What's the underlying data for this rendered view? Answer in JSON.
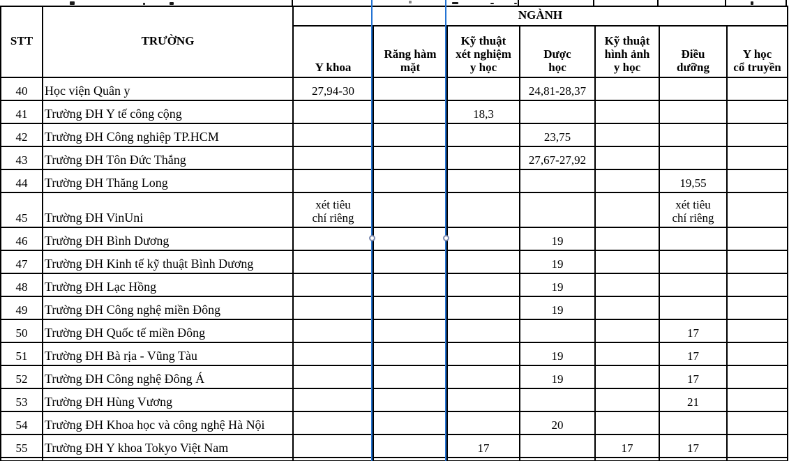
{
  "table": {
    "header": {
      "stt": "STT",
      "truong": "TRƯỜNG",
      "nganh": "NGÀNH",
      "majors": [
        "Y khoa",
        "Răng hàm\nmặt",
        "Kỹ thuật\nxét nghiệm\ny học",
        "Dược\nhọc",
        "Kỹ thuật\nhình ảnh\ny học",
        "Điều\ndưỡng",
        "Y học\ncổ truyền"
      ]
    },
    "rows": [
      {
        "stt": "40",
        "truong": "Học viện Quân y",
        "scores": [
          "27,94-30",
          "",
          "",
          "24,81-28,37",
          "",
          "",
          ""
        ]
      },
      {
        "stt": "41",
        "truong": "Trường ĐH Y tế công cộng",
        "scores": [
          "",
          "",
          "18,3",
          "",
          "",
          "",
          ""
        ]
      },
      {
        "stt": "42",
        "truong": "Trường ĐH Công nghiệp TP.HCM",
        "scores": [
          "",
          "",
          "",
          "23,75",
          "",
          "",
          ""
        ]
      },
      {
        "stt": "43",
        "truong": "Trường ĐH Tôn Đức Thắng",
        "scores": [
          "",
          "",
          "",
          "27,67-27,92",
          "",
          "",
          ""
        ]
      },
      {
        "stt": "44",
        "truong": "Trường ĐH Thăng Long",
        "scores": [
          "",
          "",
          "",
          "",
          "",
          "19,55",
          ""
        ]
      },
      {
        "stt": "45",
        "truong": "Trường ĐH VinUni",
        "scores": [
          "xét tiêu\nchí riêng",
          "",
          "",
          "",
          "",
          "xét tiêu\nchí riêng",
          ""
        ]
      },
      {
        "stt": "46",
        "truong": "Trường ĐH Bình Dương",
        "scores": [
          "",
          "",
          "",
          "19",
          "",
          "",
          ""
        ]
      },
      {
        "stt": "47",
        "truong": "Trường ĐH Kinh tế kỹ thuật Bình Dương",
        "scores": [
          "",
          "",
          "",
          "19",
          "",
          "",
          ""
        ]
      },
      {
        "stt": "48",
        "truong": "Trường ĐH Lạc Hồng",
        "scores": [
          "",
          "",
          "",
          "19",
          "",
          "",
          ""
        ]
      },
      {
        "stt": "49",
        "truong": "Trường ĐH Công nghệ miền Đông",
        "scores": [
          "",
          "",
          "",
          "19",
          "",
          "",
          ""
        ]
      },
      {
        "stt": "50",
        "truong": "Trường ĐH Quốc tế miền Đông",
        "scores": [
          "",
          "",
          "",
          "",
          "",
          "17",
          ""
        ]
      },
      {
        "stt": "51",
        "truong": "Trường ĐH Bà rịa - Vũng Tàu",
        "scores": [
          "",
          "",
          "",
          "19",
          "",
          "17",
          ""
        ]
      },
      {
        "stt": "52",
        "truong": "Trường ĐH Công nghệ Đông Á",
        "scores": [
          "",
          "",
          "",
          "19",
          "",
          "17",
          ""
        ]
      },
      {
        "stt": "53",
        "truong": "Trường ĐH Hùng Vương",
        "scores": [
          "",
          "",
          "",
          "",
          "",
          "21",
          ""
        ]
      },
      {
        "stt": "54",
        "truong": "Trường ĐH Khoa học và công nghệ Hà Nội",
        "scores": [
          "",
          "",
          "",
          "20",
          "",
          "",
          ""
        ]
      },
      {
        "stt": "55",
        "truong": "Trường ĐH Y khoa Tokyo Việt Nam",
        "scores": [
          "",
          "",
          "17",
          "",
          "17",
          "17",
          ""
        ]
      }
    ]
  },
  "overlay": {
    "marker_color": "#2474d4",
    "handle_border_color": "#7d8bb0"
  }
}
